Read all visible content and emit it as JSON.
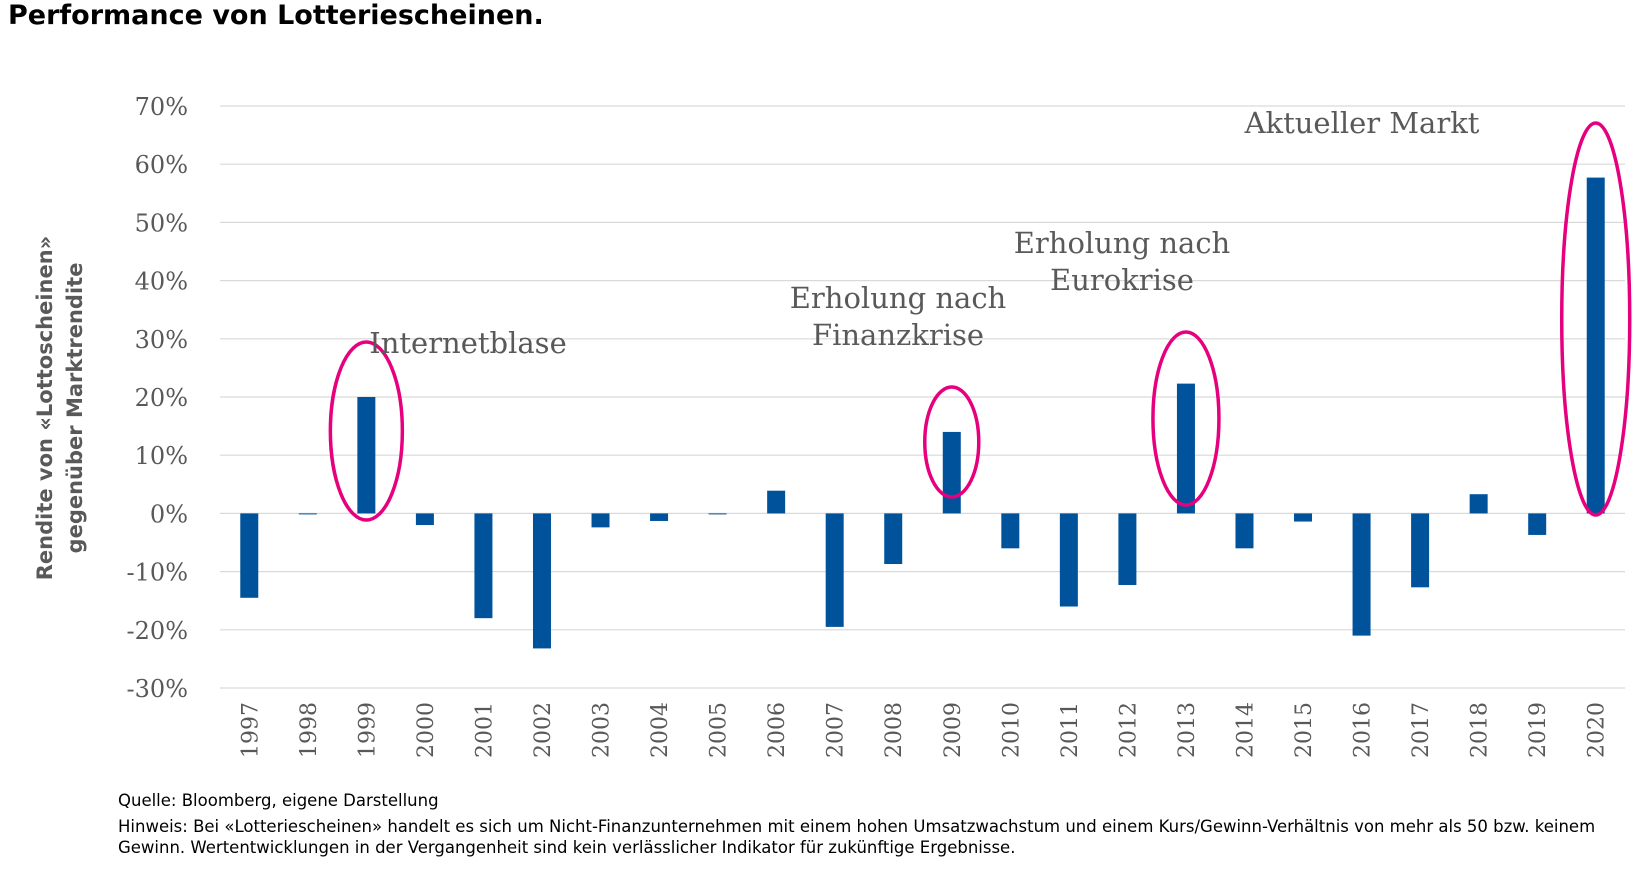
{
  "title": "Performance von Lotteriescheinen.",
  "chart_data": {
    "type": "bar",
    "categories": [
      "1997",
      "1998",
      "1999",
      "2000",
      "2001",
      "2002",
      "2003",
      "2004",
      "2005",
      "2006",
      "2007",
      "2008",
      "2009",
      "2010",
      "2011",
      "2012",
      "2013",
      "2014",
      "2015",
      "2016",
      "2017",
      "2018",
      "2019",
      "2020"
    ],
    "series": [
      {
        "name": "Rendite von «Lottoscheinen» gegenüber Marktrendite",
        "values": [
          -14.5,
          0,
          20,
          -2,
          -18,
          -23.2,
          -2.4,
          -1.3,
          0,
          3.9,
          -19.5,
          -8.7,
          14,
          -6,
          -16,
          -12.3,
          22.3,
          -6,
          -1.4,
          -21,
          -12.7,
          3.3,
          -3.7,
          57.7
        ]
      }
    ],
    "yticks": [
      "70%",
      "60%",
      "50%",
      "40%",
      "30%",
      "20%",
      "10%",
      "0%",
      "-10%",
      "-20%",
      "-30%"
    ],
    "ylim": [
      -30,
      70
    ],
    "ylabel_line1": "Rendite von «Lottoscheinen»",
    "ylabel_line2": "gegenüber Marktrendite",
    "bar_color": "#00539b",
    "highlight_color": "#e6007e",
    "grid_color": "#d9d9d9",
    "annotations": [
      {
        "category": "1999",
        "lines": [
          "Internetblase"
        ]
      },
      {
        "category": "2009",
        "lines": [
          "Erholung nach",
          "Finanzkrise"
        ]
      },
      {
        "category": "2013",
        "lines": [
          "Erholung nach",
          "Eurokrise"
        ]
      },
      {
        "category": "2020",
        "lines": [
          "Aktueller Markt"
        ]
      }
    ]
  },
  "footer": {
    "source": "Quelle: Bloomberg, eigene Darstellung",
    "note": "Hinweis: Bei «Lotteriescheinen» handelt es sich um Nicht-Finanzunternehmen mit einem hohen Umsatzwachstum und einem Kurs/Gewinn-Verhältnis von mehr als 50 bzw. keinem Gewinn. Wertentwicklungen in der Vergangenheit sind kein verlässlicher Indikator für zukünftige Ergebnisse."
  }
}
